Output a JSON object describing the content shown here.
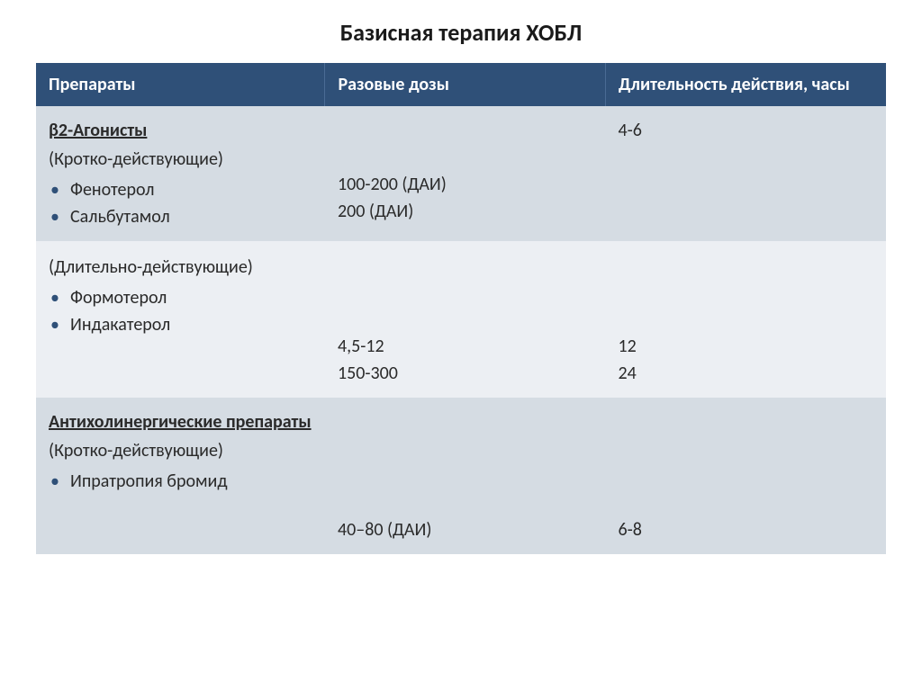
{
  "title": "Базисная терапия ХОБЛ",
  "columns": {
    "c1": "Препараты",
    "c2": "Разовые дозы",
    "c3": "Длительность действия, часы"
  },
  "col_widths": [
    "34%",
    "33%",
    "33%"
  ],
  "header_bg": "#2f5078",
  "header_fg": "#ffffff",
  "row_odd_bg": "#d5dce3",
  "row_even_bg": "#eceff3",
  "bullet_color": "#2f5078",
  "text_color": "#2a2a2a",
  "rows": [
    {
      "group_title": "β2-Агонисты",
      "group_sub": "(Кротко-действующие)",
      "items": [
        "Фенотерол",
        "Сальбутамол"
      ],
      "dose": "\n\n100-200 (ДАИ)\n200   (ДАИ)",
      "duration": " 4-6"
    },
    {
      "group_title": "",
      "group_sub": "(Длительно-действующие)",
      "items": [
        "Формотерол",
        "Индакатерол"
      ],
      "dose": "\n\n\n4,5-12\n150-300",
      "duration": "\n\n\n12\n24"
    },
    {
      "group_title": "Антихолинергические препараты",
      "group_sub": "(Кротко-действующие)",
      "items": [
        "Ипратропия бромид"
      ],
      "dose": "\n\n\n\n40–80 (ДАИ)",
      "duration": "\n\n\n\n6-8"
    }
  ]
}
